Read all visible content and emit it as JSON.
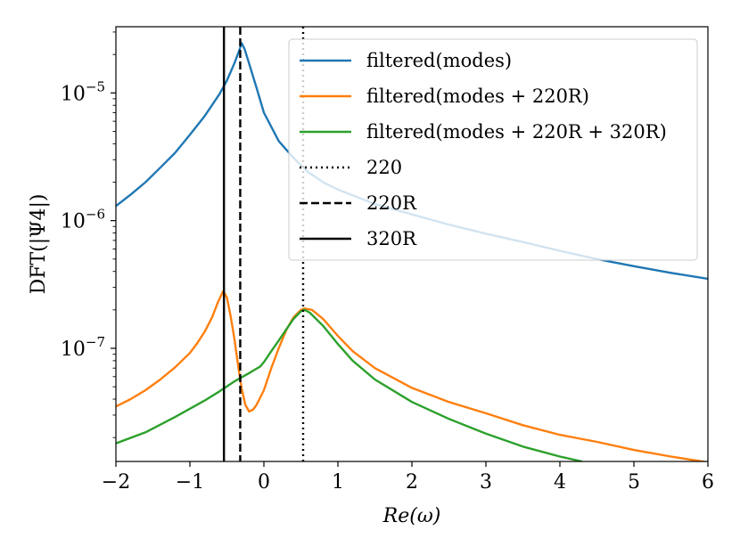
{
  "chart_data": {
    "type": "line",
    "title": "",
    "xlabel": "Re(ω)",
    "ylabel": "DFT(|Ψ4|)",
    "xlim": [
      -2,
      6
    ],
    "ylim": [
      1.3e-08,
      3.3e-05
    ],
    "yscale": "log",
    "xticks": [
      -2,
      -1,
      0,
      1,
      2,
      3,
      4,
      5,
      6
    ],
    "xtick_labels": [
      "−2",
      "−1",
      "0",
      "1",
      "2",
      "3",
      "4",
      "5",
      "6"
    ],
    "yticks": [
      {
        "value": 1e-05,
        "mantissa": "10",
        "exponent": "−5"
      },
      {
        "value": 1e-06,
        "mantissa": "10",
        "exponent": "−6"
      },
      {
        "value": 1e-07,
        "mantissa": "10",
        "exponent": "−7"
      }
    ],
    "series": [
      {
        "name": "filtered(modes)",
        "color": "#1f77b4",
        "points": [
          [
            -2.0,
            1.3e-06
          ],
          [
            -1.8,
            1.6e-06
          ],
          [
            -1.6,
            2e-06
          ],
          [
            -1.4,
            2.6e-06
          ],
          [
            -1.2,
            3.4e-06
          ],
          [
            -1.0,
            4.7e-06
          ],
          [
            -0.8,
            6.6e-06
          ],
          [
            -0.6,
            9.8e-06
          ],
          [
            -0.5,
            1.25e-05
          ],
          [
            -0.4,
            1.7e-05
          ],
          [
            -0.34,
            2.1e-05
          ],
          [
            -0.3,
            2.45e-05
          ],
          [
            -0.26,
            2.2e-05
          ],
          [
            -0.2,
            1.7e-05
          ],
          [
            -0.1,
            1.1e-05
          ],
          [
            0.0,
            7e-06
          ],
          [
            0.2,
            4.2e-06
          ],
          [
            0.4,
            3.1e-06
          ],
          [
            0.6,
            2.4e-06
          ],
          [
            0.8,
            2e-06
          ],
          [
            1.0,
            1.75e-06
          ],
          [
            1.5,
            1.35e-06
          ],
          [
            2.0,
            1.12e-06
          ],
          [
            2.5,
            9.3e-07
          ],
          [
            3.0,
            7.9e-07
          ],
          [
            3.5,
            6.8e-07
          ],
          [
            4.0,
            5.8e-07
          ],
          [
            4.5,
            5e-07
          ],
          [
            5.0,
            4.4e-07
          ],
          [
            5.5,
            3.9e-07
          ],
          [
            6.0,
            3.5e-07
          ]
        ]
      },
      {
        "name": "filtered(modes + 220R)",
        "color": "#ff7f0e",
        "points": [
          [
            -2.0,
            3.5e-08
          ],
          [
            -1.8,
            4e-08
          ],
          [
            -1.6,
            4.7e-08
          ],
          [
            -1.4,
            5.7e-08
          ],
          [
            -1.2,
            7.1e-08
          ],
          [
            -1.0,
            9.2e-08
          ],
          [
            -0.9,
            1.1e-07
          ],
          [
            -0.8,
            1.35e-07
          ],
          [
            -0.7,
            1.75e-07
          ],
          [
            -0.62,
            2.3e-07
          ],
          [
            -0.55,
            2.8e-07
          ],
          [
            -0.5,
            2.5e-07
          ],
          [
            -0.45,
            1.8e-07
          ],
          [
            -0.4,
            1.2e-07
          ],
          [
            -0.35,
            7.5e-08
          ],
          [
            -0.3,
            4.8e-08
          ],
          [
            -0.25,
            3.6e-08
          ],
          [
            -0.2,
            3.2e-08
          ],
          [
            -0.15,
            3.3e-08
          ],
          [
            -0.1,
            3.6e-08
          ],
          [
            0.0,
            4.7e-08
          ],
          [
            0.1,
            7e-08
          ],
          [
            0.2,
            1e-07
          ],
          [
            0.3,
            1.38e-07
          ],
          [
            0.4,
            1.75e-07
          ],
          [
            0.5,
            2e-07
          ],
          [
            0.55,
            2.05e-07
          ],
          [
            0.65,
            2e-07
          ],
          [
            0.8,
            1.7e-07
          ],
          [
            1.0,
            1.25e-07
          ],
          [
            1.2,
            9.5e-08
          ],
          [
            1.5,
            7e-08
          ],
          [
            2.0,
            4.9e-08
          ],
          [
            2.5,
            3.8e-08
          ],
          [
            3.0,
            3.1e-08
          ],
          [
            3.5,
            2.5e-08
          ],
          [
            4.0,
            2.1e-08
          ],
          [
            4.5,
            1.85e-08
          ],
          [
            5.0,
            1.6e-08
          ],
          [
            5.5,
            1.42e-08
          ],
          [
            6.0,
            1.28e-08
          ]
        ]
      },
      {
        "name": "filtered(modes + 220R + 320R)",
        "color": "#2ca02c",
        "points": [
          [
            -2.0,
            1.8e-08
          ],
          [
            -1.6,
            2.2e-08
          ],
          [
            -1.2,
            2.9e-08
          ],
          [
            -0.8,
            3.9e-08
          ],
          [
            -0.6,
            4.6e-08
          ],
          [
            -0.4,
            5.5e-08
          ],
          [
            -0.2,
            6.4e-08
          ],
          [
            -0.05,
            7.2e-08
          ],
          [
            0.0,
            7.8e-08
          ],
          [
            0.1,
            9.5e-08
          ],
          [
            0.2,
            1.15e-07
          ],
          [
            0.3,
            1.4e-07
          ],
          [
            0.4,
            1.7e-07
          ],
          [
            0.5,
            1.95e-07
          ],
          [
            0.55,
            2e-07
          ],
          [
            0.62,
            1.9e-07
          ],
          [
            0.8,
            1.5e-07
          ],
          [
            1.0,
            1.08e-07
          ],
          [
            1.2,
            8e-08
          ],
          [
            1.5,
            5.7e-08
          ],
          [
            2.0,
            3.8e-08
          ],
          [
            2.5,
            2.8e-08
          ],
          [
            3.0,
            2.15e-08
          ],
          [
            3.5,
            1.7e-08
          ],
          [
            4.0,
            1.42e-08
          ],
          [
            4.3,
            1.3e-08
          ]
        ]
      }
    ],
    "vlines": [
      {
        "name": "220",
        "x": 0.53,
        "style": "dotted",
        "color": "#000000"
      },
      {
        "name": "220R",
        "x": -0.32,
        "style": "dashed",
        "color": "#000000"
      },
      {
        "name": "320R",
        "x": -0.54,
        "style": "solid",
        "color": "#000000"
      }
    ],
    "legend": {
      "position": "top-right",
      "entries": [
        {
          "label": "filtered(modes)",
          "color": "#1f77b4",
          "style": "solid"
        },
        {
          "label": "filtered(modes + 220R)",
          "color": "#ff7f0e",
          "style": "solid"
        },
        {
          "label": "filtered(modes + 220R + 320R)",
          "color": "#2ca02c",
          "style": "solid"
        },
        {
          "label": "220",
          "color": "#000000",
          "style": "dotted"
        },
        {
          "label": "220R",
          "color": "#000000",
          "style": "dashed"
        },
        {
          "label": "320R",
          "color": "#000000",
          "style": "solid"
        }
      ]
    }
  }
}
